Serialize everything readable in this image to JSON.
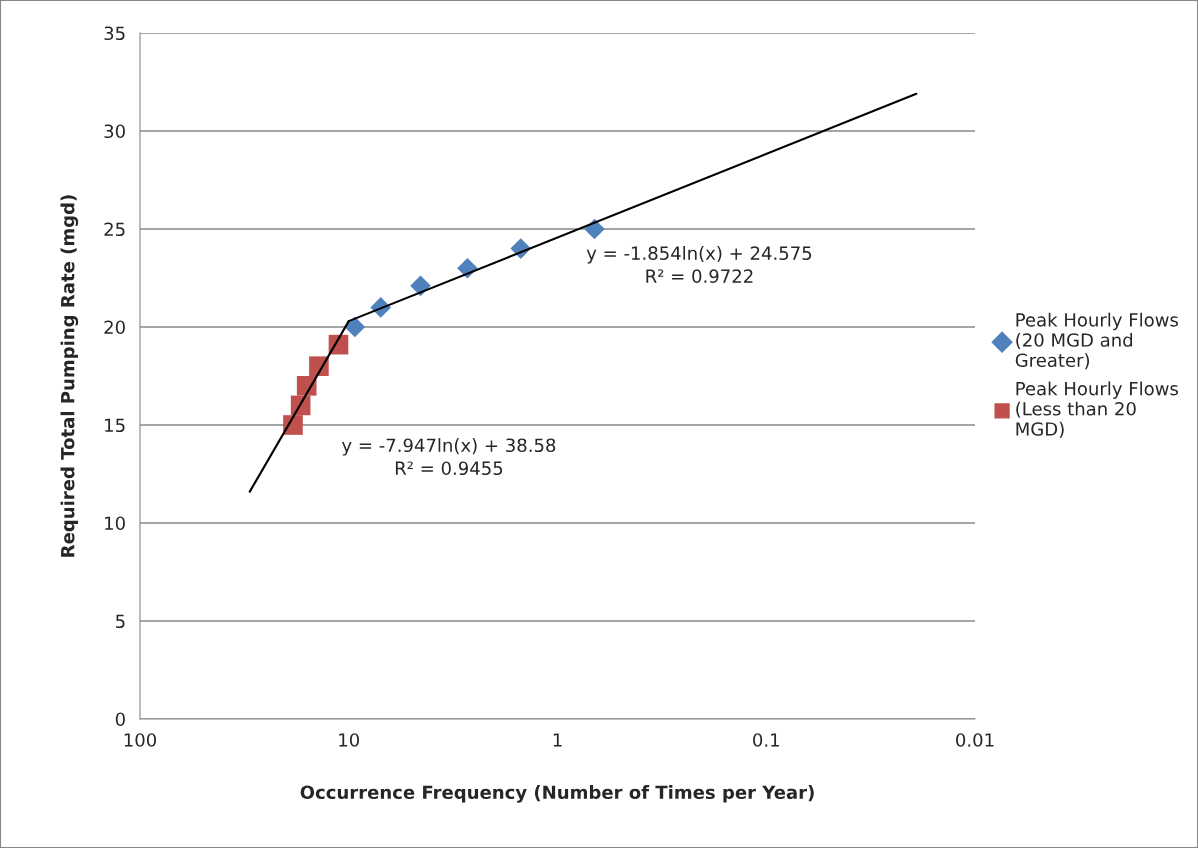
{
  "chart_data": {
    "type": "scatter",
    "xlabel": "Occurrence Frequency (Number of Times per Year)",
    "ylabel": "Required Total Pumping Rate (mgd)",
    "series": [
      {
        "name": "Peak Hourly Flows (20 MGD and Greater)",
        "color": "#4f81bd",
        "marker": "diamond",
        "x": [
          9.35,
          7.03,
          4.53,
          2.7,
          1.5,
          0.665
        ],
        "values": [
          20,
          21,
          22.1,
          23,
          24,
          25
        ]
      },
      {
        "name": "Peak Hourly Flows (Less than 20 MGD)",
        "color": "#c0504d",
        "marker": "square",
        "x": [
          11.2,
          13.9,
          15.9,
          17.0,
          18.5
        ],
        "values": [
          19.1,
          18,
          17,
          16,
          15
        ]
      },
      {
        "type": "line",
        "color": "#000000",
        "marker": "none",
        "x": [
          29.8,
          10
        ],
        "values": [
          11.6,
          20.3
        ]
      },
      {
        "type": "line",
        "color": "#000000",
        "marker": "none",
        "x": [
          10,
          0.0191
        ],
        "values": [
          20.3,
          31.9
        ]
      }
    ],
    "annotations": [
      "y = -1.854ln(x) + 24.575\nR² = 0.9722",
      "y = -7.947ln(x) + 38.58\nR² = 0.9455"
    ],
    "log": "x",
    "xlim": [
      100,
      0.01
    ],
    "xticks": [
      100,
      10,
      1,
      0.1,
      0.01
    ],
    "ylim": [
      0,
      35
    ],
    "yticks": [
      0,
      5,
      10,
      15,
      20,
      25,
      30,
      35
    ],
    "grid": "y",
    "legend": "right"
  }
}
